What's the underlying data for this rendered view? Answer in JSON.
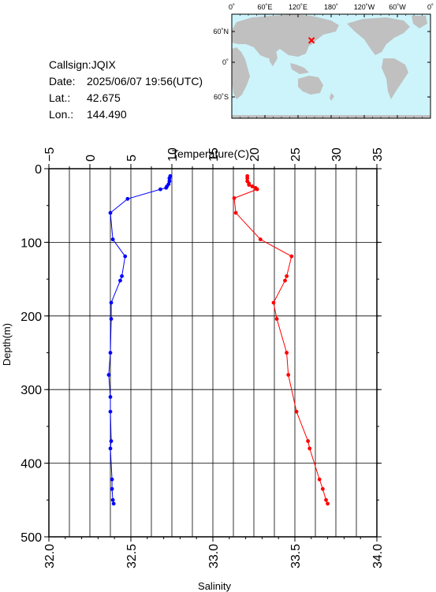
{
  "info": {
    "callsign": "Callsign:JQIX",
    "date_label": "Date:",
    "date_value": "2025/06/07 19:56(UTC)",
    "lat_label": "Lat.:",
    "lat_value": "42.675",
    "lon_label": "Lon.:",
    "lon_value": "144.490"
  },
  "map": {
    "top_labels": [
      "0˚",
      "60˚E",
      "120˚E",
      "180˚",
      "120˚W",
      "60˚W",
      "0˚"
    ],
    "left_labels": [
      "60˚N",
      "0˚",
      "60˚S"
    ],
    "marker_color": "#ff0000",
    "ocean_color": "#cdf4fb",
    "land_color": "#c0c0c0"
  },
  "chart_data": {
    "type": "line",
    "top_axis_label": "Temperature(C)",
    "bottom_axis_label": "Salinity",
    "ylabel": "Depth(m)",
    "temperature_range": [
      -5,
      35
    ],
    "temperature_ticks": [
      "−5",
      "0",
      "5",
      "10",
      "15",
      "20",
      "25",
      "30",
      "35"
    ],
    "salinity_range": [
      32.0,
      34.0
    ],
    "salinity_ticks": [
      "32.0",
      "32.5",
      "33.0",
      "33.5",
      "34.0"
    ],
    "depth_range": [
      0,
      500
    ],
    "depth_ticks": [
      "0",
      "100",
      "200",
      "300",
      "400",
      "500"
    ],
    "grid": true,
    "series": [
      {
        "axis": "temperature",
        "color": "#0000ff",
        "points": [
          [
            9.8,
            10
          ],
          [
            9.7,
            13
          ],
          [
            9.7,
            17
          ],
          [
            9.6,
            21
          ],
          [
            9.4,
            24
          ],
          [
            9.3,
            26
          ],
          [
            8.6,
            28
          ],
          [
            4.6,
            41
          ],
          [
            2.5,
            60
          ],
          [
            2.8,
            96
          ],
          [
            4.3,
            119
          ],
          [
            3.9,
            146
          ],
          [
            3.7,
            152
          ],
          [
            2.6,
            182
          ],
          [
            2.6,
            204
          ],
          [
            2.5,
            250
          ],
          [
            2.3,
            280
          ],
          [
            2.5,
            310
          ],
          [
            2.5,
            330
          ],
          [
            2.6,
            370
          ],
          [
            2.5,
            380
          ],
          [
            2.7,
            422
          ],
          [
            2.7,
            435
          ],
          [
            2.8,
            450
          ],
          [
            2.9,
            455
          ]
        ]
      },
      {
        "axis": "salinity",
        "color": "#ff0000",
        "points": [
          [
            33.21,
            10
          ],
          [
            33.21,
            13
          ],
          [
            33.21,
            17
          ],
          [
            33.22,
            20
          ],
          [
            33.22,
            22
          ],
          [
            33.24,
            24
          ],
          [
            33.26,
            26
          ],
          [
            33.27,
            28
          ],
          [
            33.13,
            40
          ],
          [
            33.14,
            60
          ],
          [
            33.29,
            96
          ],
          [
            33.48,
            119
          ],
          [
            33.45,
            146
          ],
          [
            33.44,
            152
          ],
          [
            33.37,
            182
          ],
          [
            33.39,
            204
          ],
          [
            33.45,
            250
          ],
          [
            33.46,
            280
          ],
          [
            33.51,
            330
          ],
          [
            33.58,
            370
          ],
          [
            33.59,
            380
          ],
          [
            33.65,
            422
          ],
          [
            33.67,
            435
          ],
          [
            33.69,
            450
          ],
          [
            33.7,
            455
          ]
        ]
      }
    ]
  }
}
